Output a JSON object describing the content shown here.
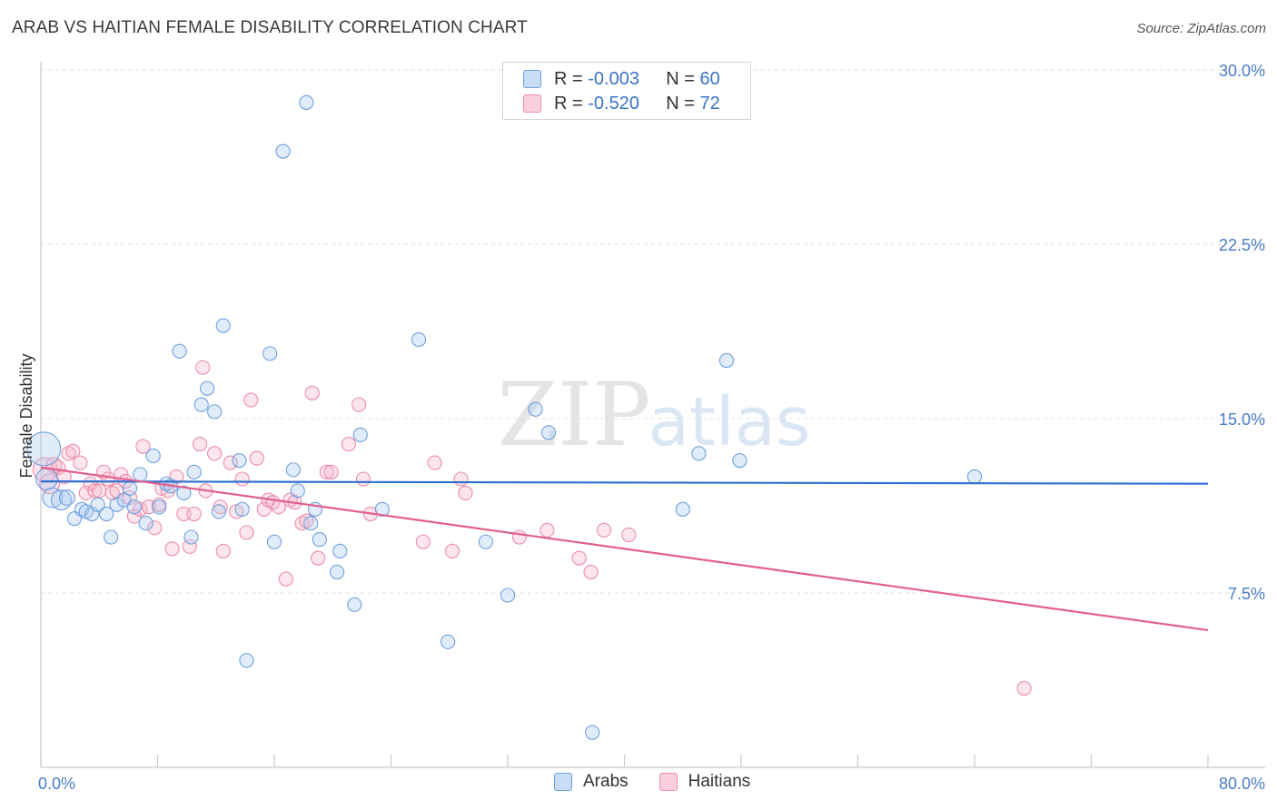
{
  "title": "ARAB VS HAITIAN FEMALE DISABILITY CORRELATION CHART",
  "source": "Source: ZipAtlas.com",
  "watermark": {
    "zip": "ZIP",
    "atlas": "atlas"
  },
  "legend": {
    "rows": [
      {
        "r_label": "R =",
        "r_value": "-0.003",
        "n_label": "N =",
        "n_value": "60",
        "fill": "#c9ddf6",
        "stroke": "#6fa0de"
      },
      {
        "r_label": "R =",
        "r_value": "-0.520",
        "n_label": "N =",
        "n_value": "72",
        "fill": "#f9cfdc",
        "stroke": "#ec8dab"
      }
    ]
  },
  "bottom_legend": [
    {
      "label": "Arabs",
      "fill": "#c9ddf6",
      "stroke": "#6fa0de"
    },
    {
      "label": "Haitians",
      "fill": "#f9cfdc",
      "stroke": "#ec8dab"
    }
  ],
  "chart_data": {
    "type": "scatter",
    "xlabel": "",
    "ylabel": "Female Disability",
    "xlim": [
      0,
      80
    ],
    "ylim": [
      0,
      31.5
    ],
    "x_tick_labels": [
      "0.0%",
      "80.0%"
    ],
    "y_ticks": [
      7.5,
      15.0,
      22.5,
      30.0
    ],
    "y_tick_labels": [
      "7.5%",
      "15.0%",
      "22.5%",
      "30.0%"
    ],
    "grid": true,
    "series": [
      {
        "name": "Arabs",
        "color": "#4a86d8",
        "fill": "rgba(170,200,240,0.35)",
        "stroke": "#6fa0de",
        "trend": {
          "x": [
            0,
            80
          ],
          "y": [
            12.3,
            12.2
          ],
          "color": "#2f6fcf"
        },
        "points": [
          [
            0.2,
            13.7,
            2.2
          ],
          [
            0.4,
            12.4,
            1.4
          ],
          [
            0.8,
            11.6,
            1.3
          ],
          [
            1.4,
            11.5,
            1.3
          ],
          [
            1.8,
            11.6,
            1.0
          ],
          [
            2.3,
            10.7,
            0.9
          ],
          [
            2.8,
            11.1,
            0.9
          ],
          [
            3.1,
            11.0,
            0.9
          ],
          [
            3.5,
            10.9,
            0.9
          ],
          [
            3.9,
            11.3,
            0.9
          ],
          [
            4.5,
            10.9,
            0.9
          ],
          [
            4.8,
            9.9,
            0.9
          ],
          [
            5.2,
            11.3,
            0.9
          ],
          [
            5.7,
            11.5,
            0.9
          ],
          [
            6.1,
            12.0,
            0.9
          ],
          [
            6.4,
            11.2,
            0.9
          ],
          [
            6.8,
            12.6,
            0.9
          ],
          [
            7.2,
            10.5,
            0.9
          ],
          [
            7.7,
            13.4,
            0.9
          ],
          [
            8.1,
            11.2,
            0.9
          ],
          [
            8.6,
            12.2,
            0.9
          ],
          [
            8.9,
            12.1,
            0.9
          ],
          [
            9.5,
            17.9,
            0.9
          ],
          [
            9.8,
            11.8,
            0.9
          ],
          [
            10.3,
            9.9,
            0.9
          ],
          [
            10.5,
            12.7,
            0.9
          ],
          [
            11.0,
            15.6,
            0.9
          ],
          [
            11.4,
            16.3,
            0.9
          ],
          [
            11.9,
            15.3,
            0.9
          ],
          [
            12.2,
            11.0,
            0.9
          ],
          [
            12.5,
            19.0,
            0.9
          ],
          [
            13.6,
            13.2,
            0.9
          ],
          [
            13.8,
            11.1,
            0.9
          ],
          [
            14.1,
            4.6,
            0.9
          ],
          [
            15.7,
            17.8,
            0.9
          ],
          [
            16.0,
            9.7,
            0.9
          ],
          [
            16.6,
            26.5,
            0.9
          ],
          [
            17.3,
            12.8,
            0.9
          ],
          [
            17.6,
            11.9,
            0.9
          ],
          [
            18.2,
            28.6,
            0.9
          ],
          [
            18.5,
            10.5,
            0.9
          ],
          [
            18.8,
            11.1,
            0.9
          ],
          [
            19.1,
            9.8,
            0.9
          ],
          [
            20.3,
            8.4,
            0.9
          ],
          [
            20.5,
            9.3,
            0.9
          ],
          [
            21.5,
            7.0,
            0.9
          ],
          [
            21.9,
            14.3,
            0.9
          ],
          [
            23.4,
            11.1,
            0.9
          ],
          [
            25.9,
            18.4,
            0.9
          ],
          [
            27.9,
            5.4,
            0.9
          ],
          [
            30.5,
            9.7,
            0.9
          ],
          [
            32.0,
            7.4,
            0.9
          ],
          [
            33.9,
            15.4,
            0.9
          ],
          [
            34.8,
            14.4,
            0.9
          ],
          [
            37.8,
            1.5,
            0.9
          ],
          [
            44.0,
            11.1,
            0.9
          ],
          [
            45.1,
            13.5,
            0.9
          ],
          [
            47.0,
            17.5,
            0.9
          ],
          [
            47.9,
            13.2,
            0.9
          ],
          [
            64.0,
            12.5,
            0.9
          ]
        ]
      },
      {
        "name": "Haitians",
        "color": "#e56c98",
        "fill": "rgba(245,180,200,0.35)",
        "stroke": "#ec8dab",
        "trend": {
          "x": [
            0,
            80
          ],
          "y": [
            12.9,
            5.9
          ],
          "color": "#e2608e"
        },
        "points": [
          [
            0.3,
            12.8,
            1.6
          ],
          [
            0.6,
            12.2,
            1.3
          ],
          [
            0.9,
            13.0,
            1.0
          ],
          [
            1.2,
            12.9,
            0.9
          ],
          [
            1.6,
            12.5,
            0.9
          ],
          [
            1.9,
            13.5,
            0.9
          ],
          [
            2.2,
            13.6,
            0.9
          ],
          [
            2.7,
            13.1,
            0.9
          ],
          [
            3.1,
            11.8,
            0.9
          ],
          [
            3.4,
            12.2,
            0.9
          ],
          [
            3.7,
            11.9,
            0.9
          ],
          [
            4.0,
            11.9,
            0.9
          ],
          [
            4.3,
            12.7,
            0.9
          ],
          [
            4.6,
            12.4,
            0.9
          ],
          [
            4.9,
            11.8,
            0.9
          ],
          [
            5.2,
            11.9,
            0.9
          ],
          [
            5.5,
            12.6,
            0.9
          ],
          [
            5.8,
            12.3,
            0.9
          ],
          [
            6.1,
            11.6,
            0.9
          ],
          [
            6.4,
            10.8,
            0.9
          ],
          [
            6.8,
            11.1,
            0.9
          ],
          [
            7.0,
            13.8,
            0.9
          ],
          [
            7.4,
            11.2,
            0.9
          ],
          [
            7.8,
            10.3,
            0.9
          ],
          [
            8.1,
            11.3,
            0.9
          ],
          [
            8.3,
            12.0,
            0.9
          ],
          [
            8.7,
            11.9,
            0.9
          ],
          [
            9.0,
            9.4,
            0.9
          ],
          [
            9.3,
            12.5,
            0.9
          ],
          [
            9.8,
            10.9,
            0.9
          ],
          [
            10.2,
            9.5,
            0.9
          ],
          [
            10.5,
            10.9,
            0.9
          ],
          [
            10.9,
            13.9,
            0.9
          ],
          [
            11.1,
            17.2,
            0.9
          ],
          [
            11.3,
            11.9,
            0.9
          ],
          [
            11.9,
            13.5,
            0.9
          ],
          [
            12.3,
            11.2,
            0.9
          ],
          [
            12.5,
            9.3,
            0.9
          ],
          [
            13.0,
            13.1,
            0.9
          ],
          [
            13.4,
            11.0,
            0.9
          ],
          [
            13.8,
            12.4,
            0.9
          ],
          [
            14.1,
            10.1,
            0.9
          ],
          [
            14.4,
            15.8,
            0.9
          ],
          [
            14.8,
            13.3,
            0.9
          ],
          [
            15.3,
            11.1,
            0.9
          ],
          [
            15.6,
            11.5,
            0.9
          ],
          [
            15.9,
            11.4,
            0.9
          ],
          [
            16.3,
            11.2,
            0.9
          ],
          [
            16.8,
            8.1,
            0.9
          ],
          [
            17.1,
            11.5,
            0.9
          ],
          [
            17.4,
            11.4,
            0.9
          ],
          [
            17.9,
            10.5,
            0.9
          ],
          [
            18.2,
            10.6,
            0.9
          ],
          [
            18.6,
            16.1,
            0.9
          ],
          [
            19.0,
            9.0,
            0.9
          ],
          [
            19.6,
            12.7,
            0.9
          ],
          [
            19.9,
            12.7,
            0.9
          ],
          [
            21.1,
            13.9,
            0.9
          ],
          [
            21.8,
            15.6,
            0.9
          ],
          [
            22.1,
            12.4,
            0.9
          ],
          [
            22.6,
            10.9,
            0.9
          ],
          [
            26.2,
            9.7,
            0.9
          ],
          [
            27.0,
            13.1,
            0.9
          ],
          [
            28.2,
            9.3,
            0.9
          ],
          [
            28.8,
            12.4,
            0.9
          ],
          [
            29.1,
            11.8,
            0.9
          ],
          [
            32.8,
            9.9,
            0.9
          ],
          [
            34.7,
            10.2,
            0.9
          ],
          [
            36.9,
            9.0,
            0.9
          ],
          [
            37.7,
            8.4,
            0.9
          ],
          [
            38.6,
            10.2,
            0.9
          ],
          [
            40.3,
            10.0,
            0.9
          ],
          [
            67.4,
            3.4,
            0.9
          ]
        ]
      }
    ]
  }
}
